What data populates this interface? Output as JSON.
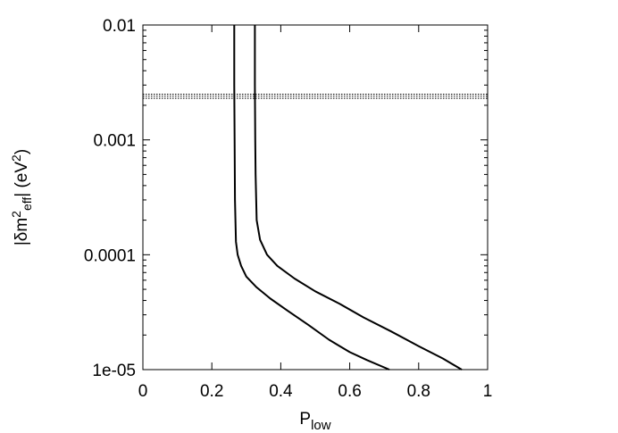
{
  "chart_data": {
    "type": "line",
    "xlabel": {
      "main": "P",
      "sub": "low"
    },
    "ylabel": {
      "pre": "|δm",
      "sup1": "2",
      "sub1": "eff",
      "mid": "| (eV",
      "sup2": "2",
      "post": ")"
    },
    "xlim": [
      0,
      1
    ],
    "ylim": [
      1e-05,
      0.01
    ],
    "yscale": "log",
    "grid": false,
    "x_ticks": [
      {
        "value": 0,
        "label": "0"
      },
      {
        "value": 0.2,
        "label": "0.2"
      },
      {
        "value": 0.4,
        "label": "0.4"
      },
      {
        "value": 0.6,
        "label": "0.6"
      },
      {
        "value": 0.8,
        "label": "0.8"
      },
      {
        "value": 1,
        "label": "1"
      }
    ],
    "y_ticks": [
      {
        "value": 1e-05,
        "label": "1e-05"
      },
      {
        "value": 0.0001,
        "label": "0.0001"
      },
      {
        "value": 0.001,
        "label": "0.001"
      },
      {
        "value": 0.01,
        "label": "0.01"
      }
    ],
    "series": [
      {
        "color": "#000000",
        "style": "solid",
        "points": [
          [
            0.265,
            0.01
          ],
          [
            0.265,
            0.003
          ],
          [
            0.266,
            0.001
          ],
          [
            0.267,
            0.0003
          ],
          [
            0.27,
            0.00013
          ],
          [
            0.275,
            0.0001
          ],
          [
            0.285,
            8e-05
          ],
          [
            0.3,
            6.45e-05
          ],
          [
            0.33,
            5.2e-05
          ],
          [
            0.37,
            4.15e-05
          ],
          [
            0.42,
            3.25e-05
          ],
          [
            0.48,
            2.45e-05
          ],
          [
            0.54,
            1.82e-05
          ],
          [
            0.6,
            1.42e-05
          ],
          [
            0.65,
            1.21e-05
          ],
          [
            0.715,
            1e-05
          ]
        ]
      },
      {
        "color": "#000000",
        "style": "solid",
        "points": [
          [
            0.325,
            0.01
          ],
          [
            0.325,
            0.003
          ],
          [
            0.326,
            0.001
          ],
          [
            0.327,
            0.0005
          ],
          [
            0.33,
            0.0002
          ],
          [
            0.34,
            0.000135
          ],
          [
            0.36,
            0.0001
          ],
          [
            0.39,
            8e-05
          ],
          [
            0.44,
            6.2e-05
          ],
          [
            0.5,
            4.8e-05
          ],
          [
            0.57,
            3.75e-05
          ],
          [
            0.64,
            2.85e-05
          ],
          [
            0.72,
            2.15e-05
          ],
          [
            0.8,
            1.6e-05
          ],
          [
            0.87,
            1.25e-05
          ],
          [
            0.925,
            1e-05
          ]
        ]
      },
      {
        "color": "#000000",
        "style": "dotted",
        "points": [
          [
            0,
            0.0025
          ],
          [
            1,
            0.0025
          ]
        ]
      },
      {
        "color": "#000000",
        "style": "dotted",
        "points": [
          [
            0,
            0.0024
          ],
          [
            1,
            0.0024
          ]
        ]
      },
      {
        "color": "#000000",
        "style": "dotted",
        "points": [
          [
            0,
            0.0023
          ],
          [
            1,
            0.0023
          ]
        ]
      }
    ]
  }
}
